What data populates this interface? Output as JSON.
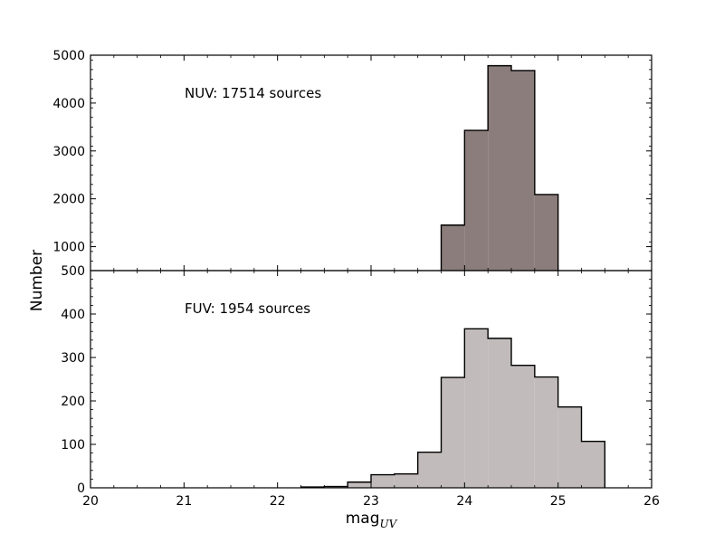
{
  "chart_data": {
    "type": "histogram",
    "xlabel": "mag",
    "xlabel_subscript": "UV",
    "ylabel": "Number",
    "xlim": [
      20,
      26
    ],
    "xticks": [
      "20",
      "21",
      "22",
      "23",
      "24",
      "25",
      "26"
    ],
    "bin_edges": [
      20.0,
      20.25,
      20.5,
      20.75,
      21.0,
      21.25,
      21.5,
      21.75,
      22.0,
      22.25,
      22.5,
      22.75,
      23.0,
      23.25,
      23.5,
      23.75,
      24.0,
      24.25,
      24.5,
      24.75,
      25.0,
      25.25,
      25.5
    ],
    "panels": [
      {
        "annotation": "NUV: 17514 sources",
        "ylim": [
          500,
          5000
        ],
        "yticks": [
          "500",
          "1000",
          "2000",
          "3000",
          "4000",
          "5000"
        ],
        "ytick_values": [
          500,
          1000,
          2000,
          3000,
          4000,
          5000
        ],
        "color": "#8b7d7b",
        "counts": [
          0,
          0,
          0,
          0,
          0,
          0,
          0,
          0,
          0,
          0,
          0,
          20,
          140,
          120,
          500,
          1450,
          3430,
          4780,
          4680,
          2090,
          190,
          90
        ]
      },
      {
        "annotation": "FUV: 1954 sources",
        "ylim": [
          0,
          500
        ],
        "yticks": [
          "0",
          "100",
          "200",
          "300",
          "400"
        ],
        "ytick_values": [
          0,
          100,
          200,
          300,
          400
        ],
        "color": "#c1bbbb",
        "counts": [
          0,
          0,
          0,
          0,
          0,
          0,
          0,
          0,
          0,
          2,
          3,
          13,
          30,
          32,
          82,
          254,
          366,
          344,
          282,
          255,
          186,
          107
        ]
      }
    ]
  }
}
